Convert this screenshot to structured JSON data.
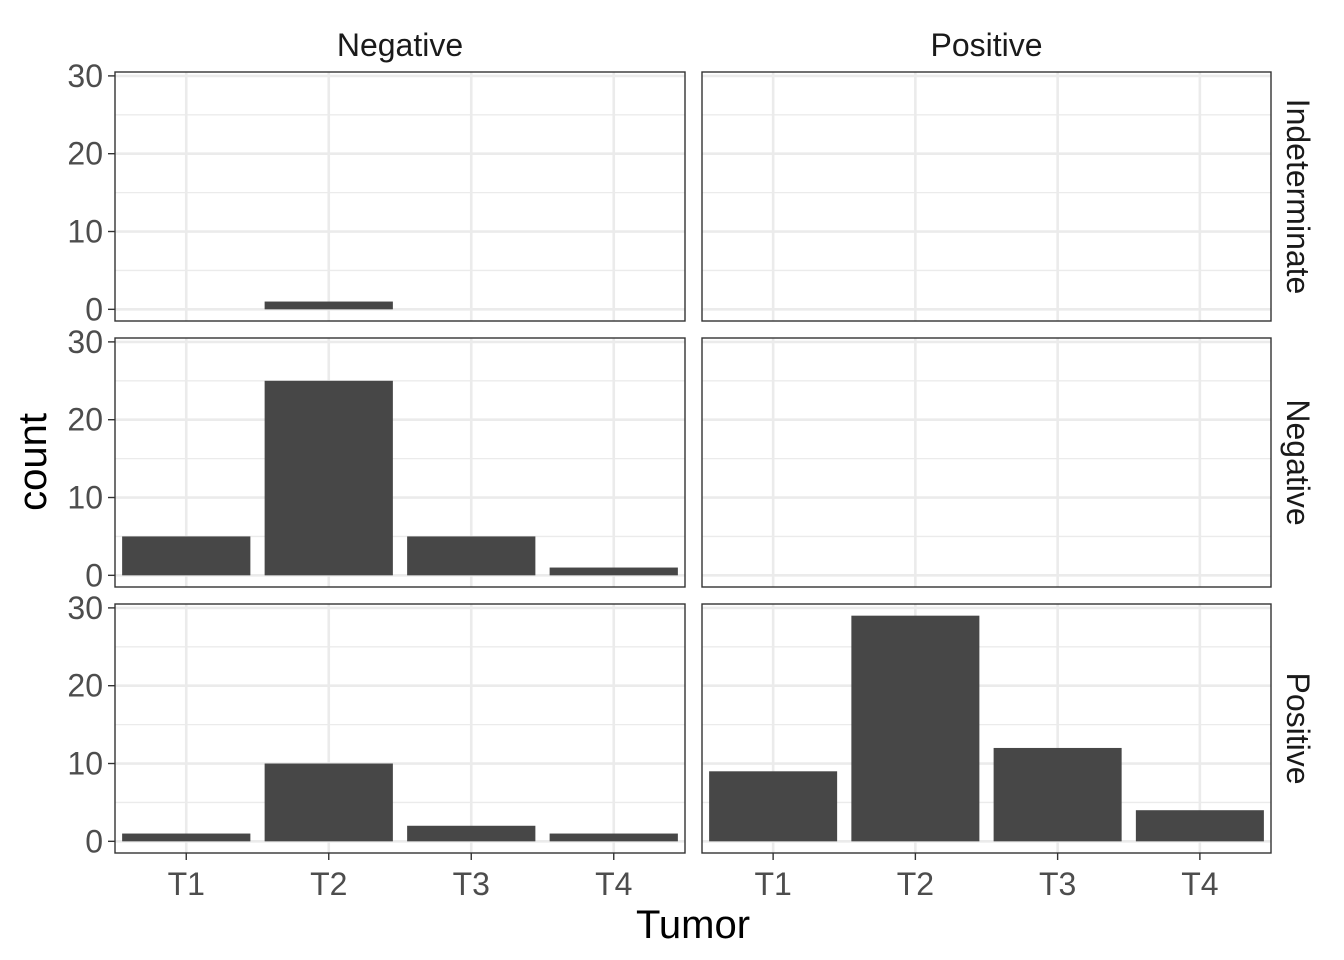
{
  "chart_data": {
    "type": "bar",
    "facet_cols": [
      "Negative",
      "Positive"
    ],
    "facet_rows": [
      "Indeterminate",
      "Negative",
      "Positive"
    ],
    "categories": [
      "T1",
      "T2",
      "T3",
      "T4"
    ],
    "panels": [
      {
        "row": "Indeterminate",
        "col": "Negative",
        "values": [
          0,
          1,
          0,
          0
        ]
      },
      {
        "row": "Indeterminate",
        "col": "Positive",
        "values": [
          0,
          0,
          0,
          0
        ]
      },
      {
        "row": "Negative",
        "col": "Negative",
        "values": [
          5,
          25,
          5,
          1
        ]
      },
      {
        "row": "Negative",
        "col": "Positive",
        "values": [
          0,
          0,
          0,
          0
        ]
      },
      {
        "row": "Positive",
        "col": "Negative",
        "values": [
          1,
          10,
          2,
          1
        ]
      },
      {
        "row": "Positive",
        "col": "Positive",
        "values": [
          9,
          29,
          12,
          4
        ]
      }
    ],
    "xlabel": "Tumor",
    "ylabel": "count",
    "ylim": [
      -1.5,
      30.5
    ],
    "yticks": [
      0,
      10,
      20,
      30
    ],
    "ytick_labels": [
      "0",
      "10",
      "20",
      "30"
    ],
    "grid": true,
    "bar_color": "#474747",
    "grid_color": "#ebebeb",
    "panel_border_color": "#333333"
  }
}
